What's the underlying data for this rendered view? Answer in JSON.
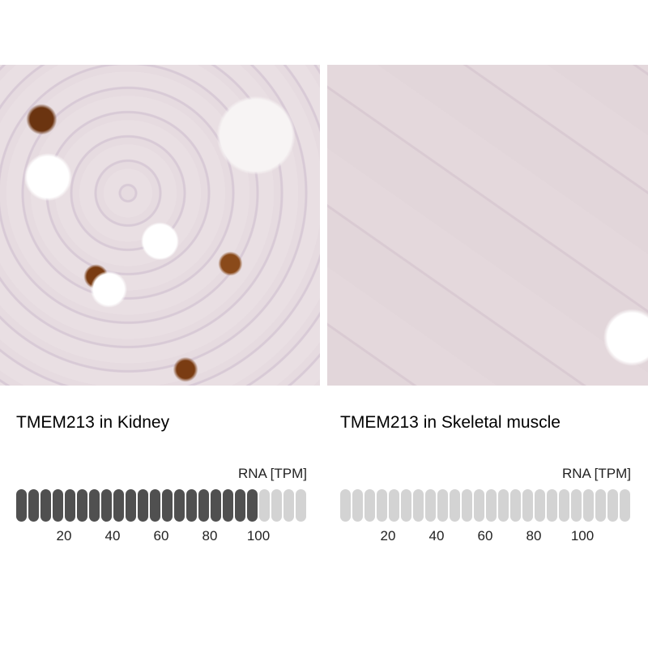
{
  "panels": [
    {
      "title": "TMEM213 in Kidney",
      "rna_label": "RNA [TPM]",
      "segments_total": 24,
      "segments_filled": 20,
      "ticks": [
        "20",
        "40",
        "60",
        "80",
        "100"
      ]
    },
    {
      "title": "TMEM213 in Skeletal muscle",
      "rna_label": "RNA [TPM]",
      "segments_total": 24,
      "segments_filled": 0,
      "ticks": [
        "20",
        "40",
        "60",
        "80",
        "100"
      ]
    }
  ],
  "colors": {
    "filled": "#505050",
    "empty": "#d3d3d3"
  }
}
